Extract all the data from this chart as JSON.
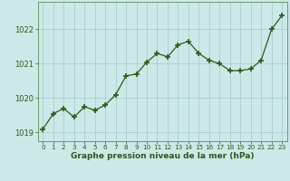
{
  "x": [
    0,
    1,
    2,
    3,
    4,
    5,
    6,
    7,
    8,
    9,
    10,
    11,
    12,
    13,
    14,
    15,
    16,
    17,
    18,
    19,
    20,
    21,
    22,
    23
  ],
  "y": [
    1019.1,
    1019.55,
    1019.7,
    1019.45,
    1019.75,
    1019.65,
    1019.8,
    1020.1,
    1020.65,
    1020.7,
    1021.05,
    1021.3,
    1021.2,
    1021.55,
    1021.65,
    1021.3,
    1021.1,
    1021.0,
    1020.8,
    1020.8,
    1020.85,
    1021.1,
    1022.0,
    1022.4
  ],
  "line_color": "#2d5a1b",
  "marker_color": "#2d5a1b",
  "bg_color": "#cce8e8",
  "grid_color": "#aacece",
  "xlabel": "Graphe pression niveau de la mer (hPa)",
  "xlabel_color": "#2d5a1b",
  "tick_color": "#2d5a1b",
  "ylim": [
    1018.75,
    1022.8
  ],
  "yticks": [
    1019,
    1020,
    1021,
    1022
  ],
  "axis_spine_color": "#6a9a6a"
}
